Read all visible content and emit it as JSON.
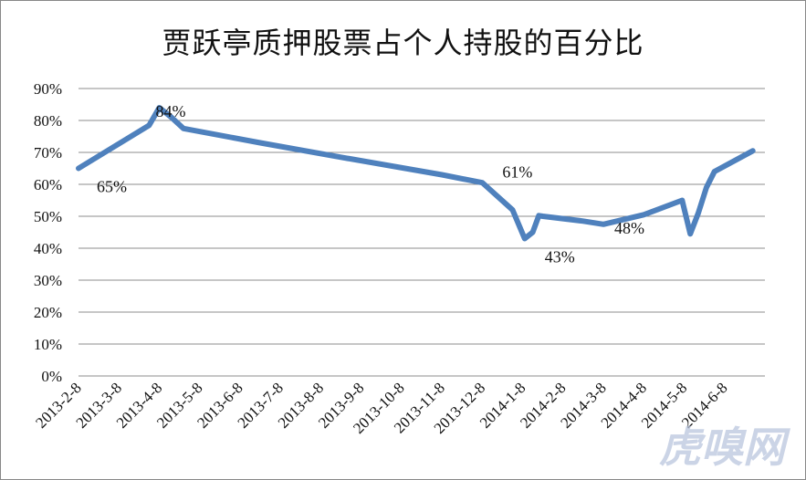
{
  "chart_data": {
    "type": "line",
    "title": "贾跃亭质押股票占个人持股的百分比",
    "categories": [
      "2013-2-8",
      "2013-3-8",
      "2013-4-8",
      "2013-5-8",
      "2013-6-8",
      "2013-7-8",
      "2013-8-8",
      "2013-9-8",
      "2013-10-8",
      "2013-11-8",
      "2013-12-8",
      "2014-1-8",
      "2014-2-8",
      "2014-3-8",
      "2014-4-8",
      "2014-5-8",
      "2014-6-8"
    ],
    "y_ticks": [
      "0%",
      "10%",
      "20%",
      "30%",
      "40%",
      "50%",
      "60%",
      "70%",
      "80%",
      "90%"
    ],
    "ylim": [
      0,
      90
    ],
    "series": [
      {
        "color": "#4f81bd",
        "x": [
          0,
          1.75,
          2.0,
          2.3,
          2.6,
          4.5,
          6.5,
          9.0,
          10.0,
          10.75,
          11.05,
          11.25,
          11.4,
          11.5,
          12.5,
          13.0,
          14.0,
          14.95,
          15.15,
          15.35,
          15.55,
          15.75,
          16.7
        ],
        "values": [
          65,
          78.5,
          84,
          81,
          77.5,
          73,
          68.5,
          63,
          60.5,
          52,
          43,
          45,
          50.2,
          50,
          48.5,
          47.5,
          50.5,
          55,
          44.5,
          51,
          59,
          64,
          70.5
        ]
      }
    ],
    "data_labels": [
      {
        "text": "65%",
        "x": 0,
        "value": 65
      },
      {
        "text": "84%",
        "x": 2.0,
        "value": 84
      },
      {
        "text": "61%",
        "x": 10.0,
        "value": 60.5
      },
      {
        "text": "43%",
        "x": 11.05,
        "value": 43
      },
      {
        "text": "48%",
        "x": 13.0,
        "value": 47.5
      }
    ],
    "grid": true,
    "legend": "none"
  },
  "watermark": "虎嗅网"
}
